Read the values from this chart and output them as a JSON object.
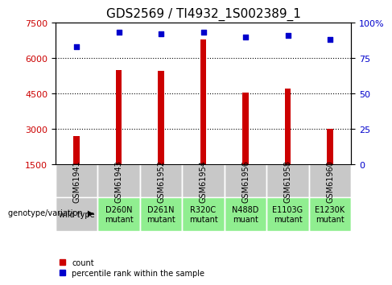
{
  "title": "GDS2569 / TI4932_1S002389_1",
  "samples": [
    "GSM61941",
    "GSM61943",
    "GSM61952",
    "GSM61954",
    "GSM61956",
    "GSM61958",
    "GSM61960"
  ],
  "counts": [
    2700,
    5500,
    5450,
    6800,
    4550,
    4700,
    3000
  ],
  "percentile_ranks": [
    83,
    93,
    92,
    93,
    90,
    91,
    88
  ],
  "genotype_row1": [
    "wild type",
    "D260N",
    "D261N",
    "R320C",
    "N488D",
    "E1103G",
    "E1230K"
  ],
  "genotype_row2": [
    "",
    "mutant",
    "mutant",
    "mutant",
    "muant",
    "mutant",
    "mutant"
  ],
  "wild_type_bg": "#c8c8c8",
  "mutant_bg": "#90ee90",
  "bar_color": "#cc0000",
  "dot_color": "#0000cc",
  "left_axis_color": "#cc0000",
  "right_axis_color": "#0000cc",
  "ylim_left": [
    1500,
    7500
  ],
  "yticks_left": [
    1500,
    3000,
    4500,
    6000,
    7500
  ],
  "ylim_right": [
    0,
    100
  ],
  "yticks_right": [
    0,
    25,
    50,
    75,
    100
  ],
  "right_tick_labels": [
    "0",
    "25",
    "50",
    "75",
    "100%"
  ],
  "grid_yticks": [
    3000,
    4500,
    6000
  ],
  "title_fontsize": 11,
  "tick_fontsize": 8,
  "sample_fontsize": 7,
  "genotype_fontsize": 7,
  "bar_width": 0.15
}
